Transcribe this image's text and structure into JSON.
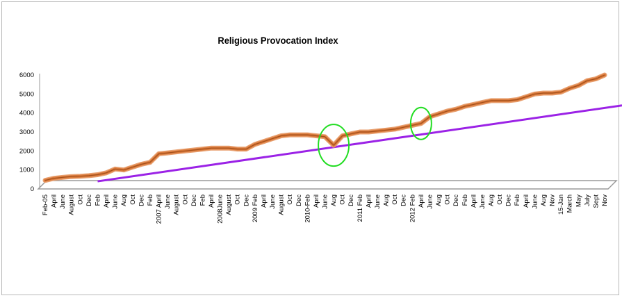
{
  "chart_data": {
    "type": "line",
    "title": "Religious Provocation Index",
    "xlabel": "",
    "ylabel": "",
    "ylim": [
      0,
      6000
    ],
    "yticks": [
      0,
      1000,
      2000,
      3000,
      4000,
      5000,
      6000
    ],
    "categories": [
      "Feb-05",
      "April",
      "June",
      "August",
      "Oct",
      "Dec",
      "Feb",
      "April",
      "June",
      "Aug",
      "Oct",
      "Dec",
      "Feb",
      "2007 April",
      "June",
      "August",
      "Oct",
      "Dec",
      "Feb",
      "April",
      "2008June",
      "August",
      "Oct",
      "Dec",
      "2009 Feb",
      "April",
      "June",
      "August",
      "Oct",
      "Dec",
      "2010-Feb",
      "April",
      "June",
      "Aug",
      "Oct",
      "Dec",
      "2011 Feb",
      "April",
      "June",
      "Aug",
      "Oct",
      "Dec",
      "2012 Feb",
      "April",
      "June",
      "Aug",
      "Oct",
      "Dec",
      "Feb",
      "April",
      "June",
      "Aug",
      "Oct",
      "Dec",
      "Feb",
      "April",
      "June",
      "Aug",
      "Nov",
      "15-Jan",
      "March",
      "May",
      "July",
      "Sept",
      "Nov"
    ],
    "series": [
      {
        "values": [
          450,
          560,
          610,
          650,
          670,
          700,
          750,
          850,
          1050,
          1000,
          1150,
          1300,
          1400,
          1850,
          1900,
          1950,
          2000,
          2050,
          2100,
          2150,
          2150,
          2150,
          2100,
          2100,
          2350,
          2500,
          2650,
          2800,
          2850,
          2850,
          2850,
          2800,
          2750,
          2300,
          2800,
          2900,
          3000,
          3000,
          3050,
          3100,
          3150,
          3250,
          3350,
          3450,
          3800,
          3950,
          4100,
          4200,
          4350,
          4450,
          4550,
          4650,
          4650,
          4650,
          4700,
          4850,
          5000,
          5050,
          5050,
          5100,
          5300,
          5450,
          5700,
          5800,
          6000
        ],
        "color": "#d9793a"
      },
      {
        "name": "",
        "x_start": "Feb",
        "y_start": 400,
        "y_end_at_right": 4400,
        "color": "#9b22e6"
      }
    ],
    "annotations": [
      {
        "shape": "ellipse",
        "at": "Aug",
        "color": "#22dd22"
      },
      {
        "shape": "ellipse",
        "at": "April",
        "color": "#22dd22"
      }
    ],
    "grid": false,
    "legend": "none"
  }
}
